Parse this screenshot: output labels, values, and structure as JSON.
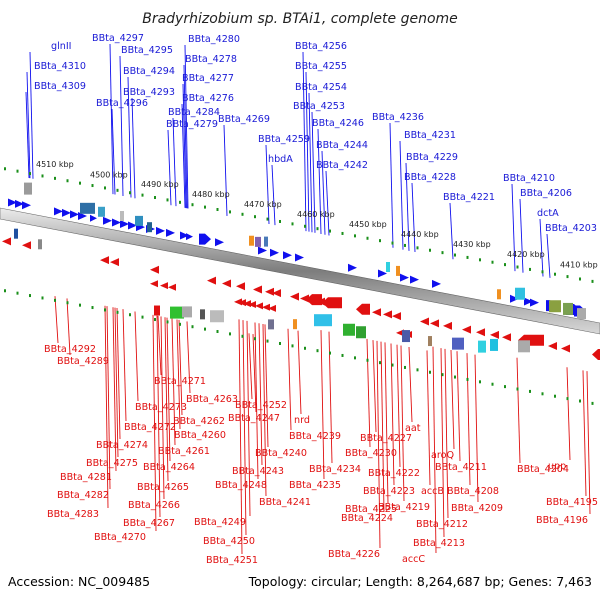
{
  "title": "Bradyrhizobium sp. BTAi1, complete genome",
  "accession": "Accession: NC_009485",
  "summary": "Topology: circular; Length: 8,264,687 bp; Genes: 7,463",
  "colors": {
    "forward": "#1010ee",
    "reverse": "#e01010",
    "axis": "#888888",
    "ticks": "#1a8f1a"
  },
  "scale_labels": [
    "4510 kbp",
    "4500 kbp",
    "4490 kbp",
    "4480 kbp",
    "4470 kbp",
    "4460 kbp",
    "4450 kbp",
    "4440 kbp",
    "4430 kbp",
    "4420 kbp",
    "4410 kbp"
  ],
  "top_genes": [
    "glnII",
    "BBta_4310",
    "BBta_4309",
    "BBta_4297",
    "BBta_4295",
    "BBta_4294",
    "BBta_4293",
    "BBta_4296",
    "BBta_4280",
    "BBta_4278",
    "BBta_4277",
    "BBta_4276",
    "BBta_4284",
    "BBta_4279",
    "BBta_4269",
    "BBta_4256",
    "BBta_4255",
    "BBta_4254",
    "BBta_4253",
    "BBta_4246",
    "BBta_4259",
    "hbdA",
    "BBta_4244",
    "BBta_4242",
    "BBta_4236",
    "BBta_4231",
    "BBta_4229",
    "BBta_4228",
    "BBta_4221",
    "BBta_4210",
    "BBta_4206",
    "dctA",
    "BBta_4203"
  ],
  "bottom_genes": [
    "BBta_4292",
    "BBta_4289",
    "BBta_4271",
    "BBta_4273",
    "BBta_4272",
    "BBta_4274",
    "BBta_4275",
    "BBta_4281",
    "BBta_4282",
    "BBta_4283",
    "BBta_4263",
    "BBta_4262",
    "BBta_4260",
    "BBta_4261",
    "BBta_4264",
    "BBta_4265",
    "BBta_4266",
    "BBta_4267",
    "BBta_4270",
    "BBta_4252",
    "BBta_4247",
    "BBta_4239",
    "nrd",
    "BBta_4240",
    "BBta_4243",
    "BBta_4248",
    "BBta_4241",
    "BBta_4249",
    "BBta_4250",
    "BBta_4251",
    "BBta_4227",
    "BBta_4230",
    "BBta_4234",
    "BBta_4235",
    "aat",
    "BBta_4222",
    "BBta_4223",
    "BBta_4225",
    "BBta_4224",
    "BBta_4226",
    "BBta_4219",
    "accB",
    "aroQ",
    "BBta_4211",
    "BBta_4208",
    "BBta_4209",
    "BBta_4212",
    "BBta_4213",
    "accC",
    "BBta_4204",
    "upp",
    "BBta_4195",
    "BBta_4196"
  ]
}
